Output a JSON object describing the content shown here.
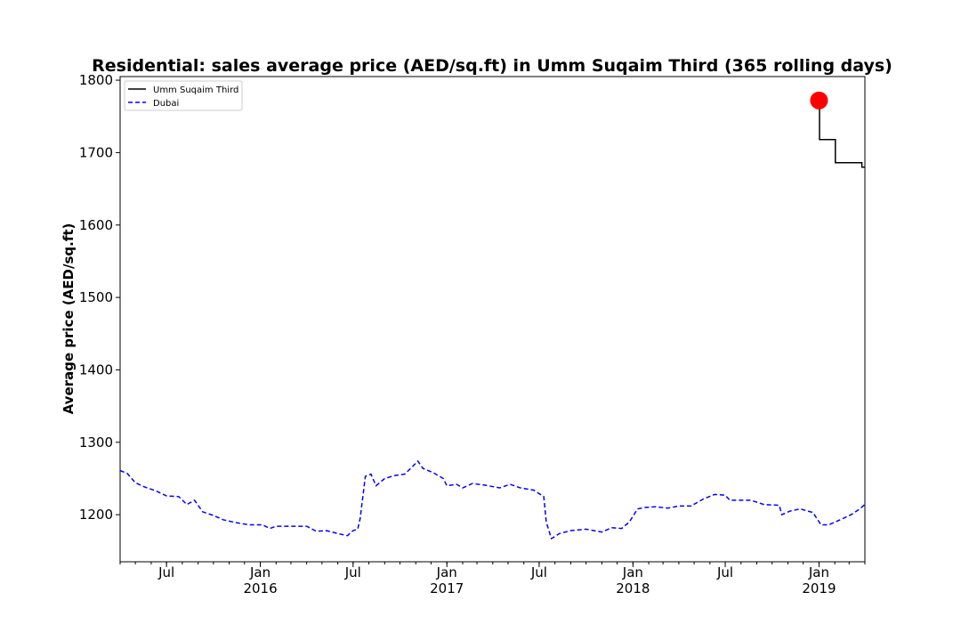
{
  "chart_data": {
    "type": "line",
    "title": "Residential: sales average price (AED/sq.ft) in Umm Suqaim Third (365 rolling days)",
    "xlabel": "",
    "ylabel": "Average price (AED/sq.ft)",
    "xlim": [
      "2015-04-01",
      "2019-04-01"
    ],
    "ylim": [
      1135,
      1805
    ],
    "y_ticks": [
      1200,
      1300,
      1400,
      1500,
      1600,
      1700,
      1800
    ],
    "x_ticks": [
      {
        "date": "2015-07-01",
        "label": "Jul",
        "year": ""
      },
      {
        "date": "2016-01-01",
        "label": "Jan",
        "year": "2016"
      },
      {
        "date": "2016-07-01",
        "label": "Jul",
        "year": ""
      },
      {
        "date": "2017-01-01",
        "label": "Jan",
        "year": "2017"
      },
      {
        "date": "2017-07-01",
        "label": "Jul",
        "year": ""
      },
      {
        "date": "2018-01-01",
        "label": "Jan",
        "year": "2018"
      },
      {
        "date": "2018-07-01",
        "label": "Jul",
        "year": ""
      },
      {
        "date": "2019-01-01",
        "label": "Jan",
        "year": "2019"
      }
    ],
    "grid": false,
    "legend_position": "top-left",
    "series": [
      {
        "name": "Umm Suqaim Third",
        "color": "#000000",
        "style": "solid",
        "step": true,
        "points": [
          [
            "2019-01-01",
            1772
          ],
          [
            "2019-01-02",
            1718
          ],
          [
            "2019-02-01",
            1718
          ],
          [
            "2019-02-02",
            1686
          ],
          [
            "2019-03-25",
            1686
          ],
          [
            "2019-03-26",
            1680
          ],
          [
            "2019-04-01",
            1680
          ]
        ]
      },
      {
        "name": "Dubai",
        "color": "#0000ff",
        "style": "dashed",
        "step": false,
        "points": [
          [
            "2015-04-01",
            1261
          ],
          [
            "2015-04-15",
            1257
          ],
          [
            "2015-05-01",
            1244
          ],
          [
            "2015-05-20",
            1238
          ],
          [
            "2015-06-10",
            1233
          ],
          [
            "2015-07-01",
            1226
          ],
          [
            "2015-07-25",
            1225
          ],
          [
            "2015-08-10",
            1214
          ],
          [
            "2015-08-25",
            1220
          ],
          [
            "2015-09-10",
            1204
          ],
          [
            "2015-10-01",
            1199
          ],
          [
            "2015-10-20",
            1193
          ],
          [
            "2015-11-15",
            1189
          ],
          [
            "2015-12-10",
            1186
          ],
          [
            "2016-01-05",
            1186
          ],
          [
            "2016-01-20",
            1181
          ],
          [
            "2016-02-01",
            1184
          ],
          [
            "2016-03-01",
            1184
          ],
          [
            "2016-04-01",
            1184
          ],
          [
            "2016-04-20",
            1177
          ],
          [
            "2016-05-10",
            1178
          ],
          [
            "2016-06-01",
            1174
          ],
          [
            "2016-06-20",
            1171
          ],
          [
            "2016-07-01",
            1178
          ],
          [
            "2016-07-10",
            1180
          ],
          [
            "2016-07-15",
            1195
          ],
          [
            "2016-07-25",
            1253
          ],
          [
            "2016-08-05",
            1256
          ],
          [
            "2016-08-15",
            1240
          ],
          [
            "2016-09-01",
            1250
          ],
          [
            "2016-09-20",
            1254
          ],
          [
            "2016-10-10",
            1256
          ],
          [
            "2016-10-25",
            1266
          ],
          [
            "2016-11-05",
            1274
          ],
          [
            "2016-11-15",
            1264
          ],
          [
            "2016-12-05",
            1258
          ],
          [
            "2016-12-25",
            1250
          ],
          [
            "2017-01-01",
            1240
          ],
          [
            "2017-01-20",
            1242
          ],
          [
            "2017-02-01",
            1237
          ],
          [
            "2017-02-20",
            1243
          ],
          [
            "2017-03-15",
            1241
          ],
          [
            "2017-04-15",
            1237
          ],
          [
            "2017-05-05",
            1242
          ],
          [
            "2017-05-25",
            1237
          ],
          [
            "2017-06-20",
            1234
          ],
          [
            "2017-07-10",
            1225
          ],
          [
            "2017-07-15",
            1190
          ],
          [
            "2017-07-25",
            1167
          ],
          [
            "2017-08-10",
            1174
          ],
          [
            "2017-09-01",
            1178
          ],
          [
            "2017-10-01",
            1180
          ],
          [
            "2017-11-01",
            1176
          ],
          [
            "2017-11-20",
            1182
          ],
          [
            "2017-12-10",
            1181
          ],
          [
            "2017-12-25",
            1190
          ],
          [
            "2018-01-10",
            1208
          ],
          [
            "2018-01-25",
            1210
          ],
          [
            "2018-02-15",
            1211
          ],
          [
            "2018-03-10",
            1209
          ],
          [
            "2018-04-01",
            1212
          ],
          [
            "2018-04-25",
            1212
          ],
          [
            "2018-05-20",
            1222
          ],
          [
            "2018-06-10",
            1228
          ],
          [
            "2018-07-01",
            1227
          ],
          [
            "2018-07-10",
            1220
          ],
          [
            "2018-08-01",
            1220
          ],
          [
            "2018-08-20",
            1220
          ],
          [
            "2018-09-15",
            1214
          ],
          [
            "2018-10-15",
            1213
          ],
          [
            "2018-10-20",
            1200
          ],
          [
            "2018-11-05",
            1205
          ],
          [
            "2018-11-25",
            1208
          ],
          [
            "2018-12-20",
            1203
          ],
          [
            "2019-01-05",
            1186
          ],
          [
            "2019-01-20",
            1186
          ],
          [
            "2019-02-15",
            1194
          ],
          [
            "2019-03-05",
            1200
          ],
          [
            "2019-03-20",
            1207
          ],
          [
            "2019-04-01",
            1214
          ]
        ]
      }
    ],
    "annotations": [
      {
        "type": "marker",
        "date": "2019-01-01",
        "value": 1772,
        "color": "#ff0000"
      }
    ]
  }
}
